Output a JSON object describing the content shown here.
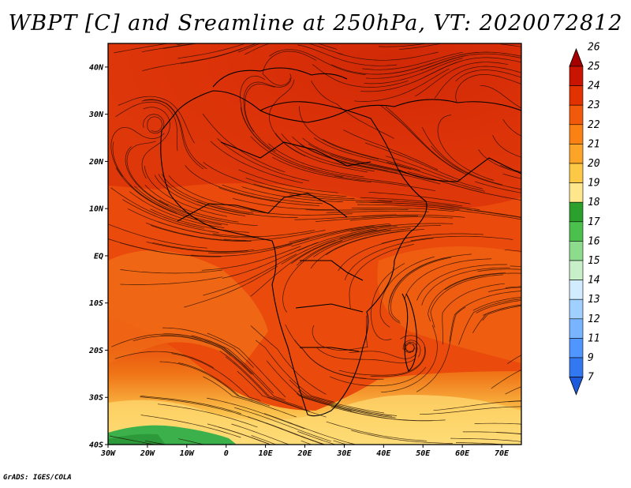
{
  "title": "WBPT [C] and Sreamline at 250hPa, VT: 2020072812",
  "credit": "GrADS: IGES/COLA",
  "map": {
    "field": "WBPT",
    "units": "C",
    "level": "250hPa",
    "valid_time": "2020072812",
    "lon_range": [
      -30,
      75
    ],
    "lat_range": [
      -40,
      45
    ],
    "lat_ticks": [
      {
        "value": 40,
        "label": "40N"
      },
      {
        "value": 30,
        "label": "30N"
      },
      {
        "value": 20,
        "label": "20N"
      },
      {
        "value": 10,
        "label": "10N"
      },
      {
        "value": 0,
        "label": "EQ"
      },
      {
        "value": -10,
        "label": "10S"
      },
      {
        "value": -20,
        "label": "20S"
      },
      {
        "value": -30,
        "label": "30S"
      },
      {
        "value": -40,
        "label": "40S"
      }
    ],
    "lon_ticks": [
      {
        "value": -30,
        "label": "30W"
      },
      {
        "value": -20,
        "label": "20W"
      },
      {
        "value": -10,
        "label": "10W"
      },
      {
        "value": 0,
        "label": "0"
      },
      {
        "value": 10,
        "label": "10E"
      },
      {
        "value": 20,
        "label": "20E"
      },
      {
        "value": 30,
        "label": "30E"
      },
      {
        "value": 40,
        "label": "40E"
      },
      {
        "value": 50,
        "label": "50E"
      },
      {
        "value": 60,
        "label": "60E"
      },
      {
        "value": 70,
        "label": "70E"
      }
    ]
  },
  "colorbar": {
    "levels": [
      "26",
      "25",
      "24",
      "23",
      "22",
      "21",
      "20",
      "19",
      "18",
      "17",
      "16",
      "15",
      "14",
      "13",
      "12",
      "11",
      "9",
      "7"
    ],
    "colors": [
      "#a50000",
      "#c81400",
      "#e13200",
      "#f05a0a",
      "#fa8214",
      "#fca428",
      "#fdc846",
      "#fde68c",
      "#2ca02c",
      "#4cc04c",
      "#8ddc8d",
      "#c8f0c8",
      "#d2ecff",
      "#a0d0ff",
      "#78b4ff",
      "#5096ff",
      "#3278f0",
      "#1e5adc"
    ]
  }
}
